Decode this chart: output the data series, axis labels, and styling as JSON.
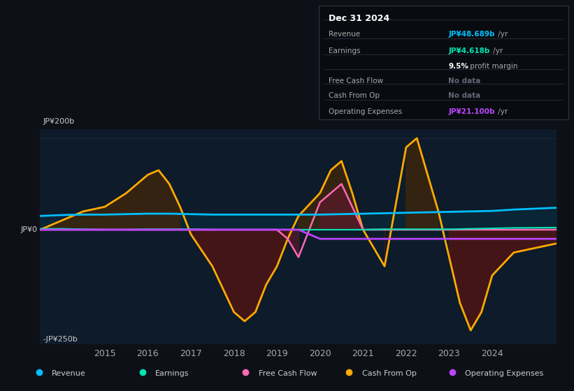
{
  "bg_color": "#0d1117",
  "plot_bg_color": "#0d1b2a",
  "title_box_date": "Dec 31 2024",
  "ylim": [
    -250,
    220
  ],
  "xlim": [
    2013.5,
    2025.5
  ],
  "y_label_top": "JP¥200b",
  "y_label_zero": "JP¥0",
  "y_label_bottom": "-JP¥250b",
  "x_ticks": [
    2015,
    2016,
    2017,
    2018,
    2019,
    2020,
    2021,
    2022,
    2023,
    2024
  ],
  "legend": [
    {
      "label": "Revenue",
      "color": "#00bfff"
    },
    {
      "label": "Earnings",
      "color": "#00e5b3"
    },
    {
      "label": "Free Cash Flow",
      "color": "#ff69b4"
    },
    {
      "label": "Cash From Op",
      "color": "#ffaa00"
    },
    {
      "label": "Operating Expenses",
      "color": "#bb44ff"
    }
  ],
  "revenue_x": [
    2013.5,
    2014,
    2014.5,
    2015,
    2015.5,
    2016,
    2016.5,
    2017,
    2017.5,
    2018,
    2018.5,
    2019,
    2019.5,
    2020,
    2020.5,
    2021,
    2021.5,
    2022,
    2022.5,
    2023,
    2023.5,
    2024,
    2024.5,
    2025.5
  ],
  "revenue_y": [
    30,
    32,
    33,
    33,
    34,
    35,
    35,
    34,
    33,
    33,
    33,
    33,
    33,
    33,
    34,
    35,
    36,
    37,
    38,
    39,
    40,
    41,
    44,
    48
  ],
  "revenue_color": "#00bfff",
  "earnings_x": [
    2013.5,
    2014,
    2014.5,
    2015,
    2015.5,
    2016,
    2016.5,
    2017,
    2017.5,
    2018,
    2018.5,
    2019,
    2019.5,
    2020,
    2020.5,
    2021,
    2021.5,
    2022,
    2022.5,
    2023,
    2023.5,
    2024,
    2024.5,
    2025.5
  ],
  "earnings_y": [
    2,
    2,
    1,
    0,
    0,
    1,
    1,
    1,
    0,
    0,
    0,
    0,
    0,
    0,
    0,
    0,
    1,
    1,
    1,
    1,
    2,
    3,
    4,
    4.6
  ],
  "earnings_color": "#00e5b3",
  "cash_from_op_x": [
    2013.5,
    2014,
    2014.5,
    2015,
    2015.5,
    2016,
    2016.25,
    2016.5,
    2016.75,
    2017,
    2017.5,
    2017.75,
    2018,
    2018.25,
    2018.5,
    2018.75,
    2019,
    2019.25,
    2019.5,
    2020,
    2020.25,
    2020.5,
    2020.75,
    2021,
    2021.5,
    2022,
    2022.25,
    2022.5,
    2022.75,
    2023,
    2023.25,
    2023.5,
    2023.75,
    2024,
    2024.5,
    2025.5
  ],
  "cash_from_op_y": [
    0,
    20,
    40,
    50,
    80,
    120,
    130,
    100,
    50,
    -10,
    -80,
    -130,
    -180,
    -200,
    -180,
    -120,
    -80,
    -20,
    30,
    80,
    130,
    150,
    80,
    0,
    -80,
    180,
    200,
    120,
    40,
    -60,
    -160,
    -220,
    -180,
    -100,
    -50,
    -30
  ],
  "cash_from_op_color": "#ffaa00",
  "free_cash_flow_x": [
    2013.5,
    2014,
    2014.5,
    2015,
    2015.5,
    2016,
    2016.5,
    2017,
    2017.5,
    2018,
    2018.5,
    2019,
    2019.25,
    2019.5,
    2020,
    2020.25,
    2020.5,
    2021,
    2021.5,
    2022,
    2022.5,
    2023,
    2023.5,
    2024,
    2024.5,
    2025.5
  ],
  "free_cash_flow_y": [
    0,
    0,
    0,
    0,
    0,
    0,
    0,
    0,
    0,
    0,
    0,
    0,
    -20,
    -60,
    60,
    80,
    100,
    0,
    0,
    0,
    0,
    0,
    0,
    0,
    0,
    0
  ],
  "free_cash_flow_color": "#ff69b4",
  "op_expenses_x": [
    2013.5,
    2019.5,
    2020,
    2020.5,
    2025.5
  ],
  "op_expenses_y": [
    0,
    0,
    -20,
    -20,
    -20
  ],
  "op_expenses_color": "#bb44ff"
}
